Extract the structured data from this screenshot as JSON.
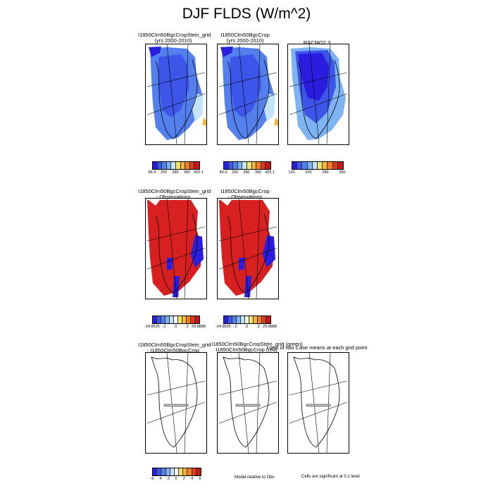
{
  "page": {
    "title": "DJF FLDS (W/m^2)"
  },
  "row1": {
    "panels": [
      {
        "title_line1": "I1850Clm50BgcCropStein_grid",
        "title_line2": "(yrs 2000-2010)"
      },
      {
        "title_line1": "I1850Clm50BgcCrop",
        "title_line2": "(yrs 2000-2010)"
      },
      {
        "title_line1": "RACMO2.3",
        "title_line2": ""
      }
    ],
    "colorbars": [
      {
        "colors": [
          "#2a1de0",
          "#3d55e8",
          "#4f80ee",
          "#7fb4f4",
          "#c2e3fa",
          "#f2e56b",
          "#f7b53a",
          "#f27d27",
          "#e33a1f",
          "#c41818"
        ],
        "ticks": [
          "86.4",
          "200",
          "280",
          "360",
          "425.1"
        ]
      },
      {
        "colors": [
          "#2a1de0",
          "#3d55e8",
          "#4f80ee",
          "#7fb4f4",
          "#c2e3fa",
          "#f2e56b",
          "#f7b53a",
          "#f27d27",
          "#e33a1f",
          "#c41818"
        ],
        "ticks": [
          "86.4",
          "200",
          "280",
          "360",
          "425.1"
        ]
      },
      {
        "colors": [
          "#2a1de0",
          "#3d55e8",
          "#4f80ee",
          "#7fb4f4",
          "#c2e3fa",
          "#f2e56b",
          "#f7b53a",
          "#f27d27",
          "#e33a1f",
          "#c41818"
        ],
        "ticks": [
          "120",
          "200",
          "280",
          "360"
        ]
      }
    ]
  },
  "row2": {
    "panels": [
      {
        "title_line1": "I1850Clm50BgcCropStein_grid",
        "title_line2": "- Observations"
      },
      {
        "title_line1": "I1850Clm50BgcCrop",
        "title_line2": "- Observations"
      }
    ],
    "colorbars": [
      {
        "colors": [
          "#2a1de0",
          "#3d55e8",
          "#4f80ee",
          "#7fb4f4",
          "#c2e3fa",
          "#ffffff",
          "#f2e56b",
          "#f7b53a",
          "#f27d27",
          "#e33a1f",
          "#c41818"
        ],
        "ticks": [
          "-24.8525",
          "-.2",
          ".0",
          ".2",
          "29.8888"
        ]
      },
      {
        "colors": [
          "#2a1de0",
          "#3d55e8",
          "#4f80ee",
          "#7fb4f4",
          "#c2e3fa",
          "#ffffff",
          "#f2e56b",
          "#f7b53a",
          "#f27d27",
          "#e33a1f",
          "#c41818"
        ],
        "ticks": [
          "-24.8525",
          "-.2",
          ".0",
          ".2",
          "29.8888"
        ]
      }
    ]
  },
  "row3": {
    "panels": [
      {
        "title_line1": "I1850Clm50BgcCropStein_grid",
        "title_line2": "- I1850Clm50BgcCrop"
      },
      {
        "title_line1": "I1850Clm50BgcCropStein_grid (green)",
        "title_line2": "I1850Clm50BgcCrop (red)"
      },
      {
        "title_line1": "t-test of two Case means at each grid point",
        "title_line2": ""
      }
    ],
    "colorbar": {
      "colors": [
        "#2a1de0",
        "#3d55e8",
        "#4f80ee",
        "#7fb4f4",
        "#c2e3fa",
        "#ffffff",
        "#f2e56b",
        "#f7b53a",
        "#f27d27",
        "#e33a1f",
        "#c41818"
      ],
      "ticks": [
        "-6",
        "-4",
        "-2",
        "0",
        "2",
        "4",
        "6"
      ]
    },
    "note_center": "Model relative to Obs",
    "note_right": "Cells are significant at 0.1 level"
  }
}
